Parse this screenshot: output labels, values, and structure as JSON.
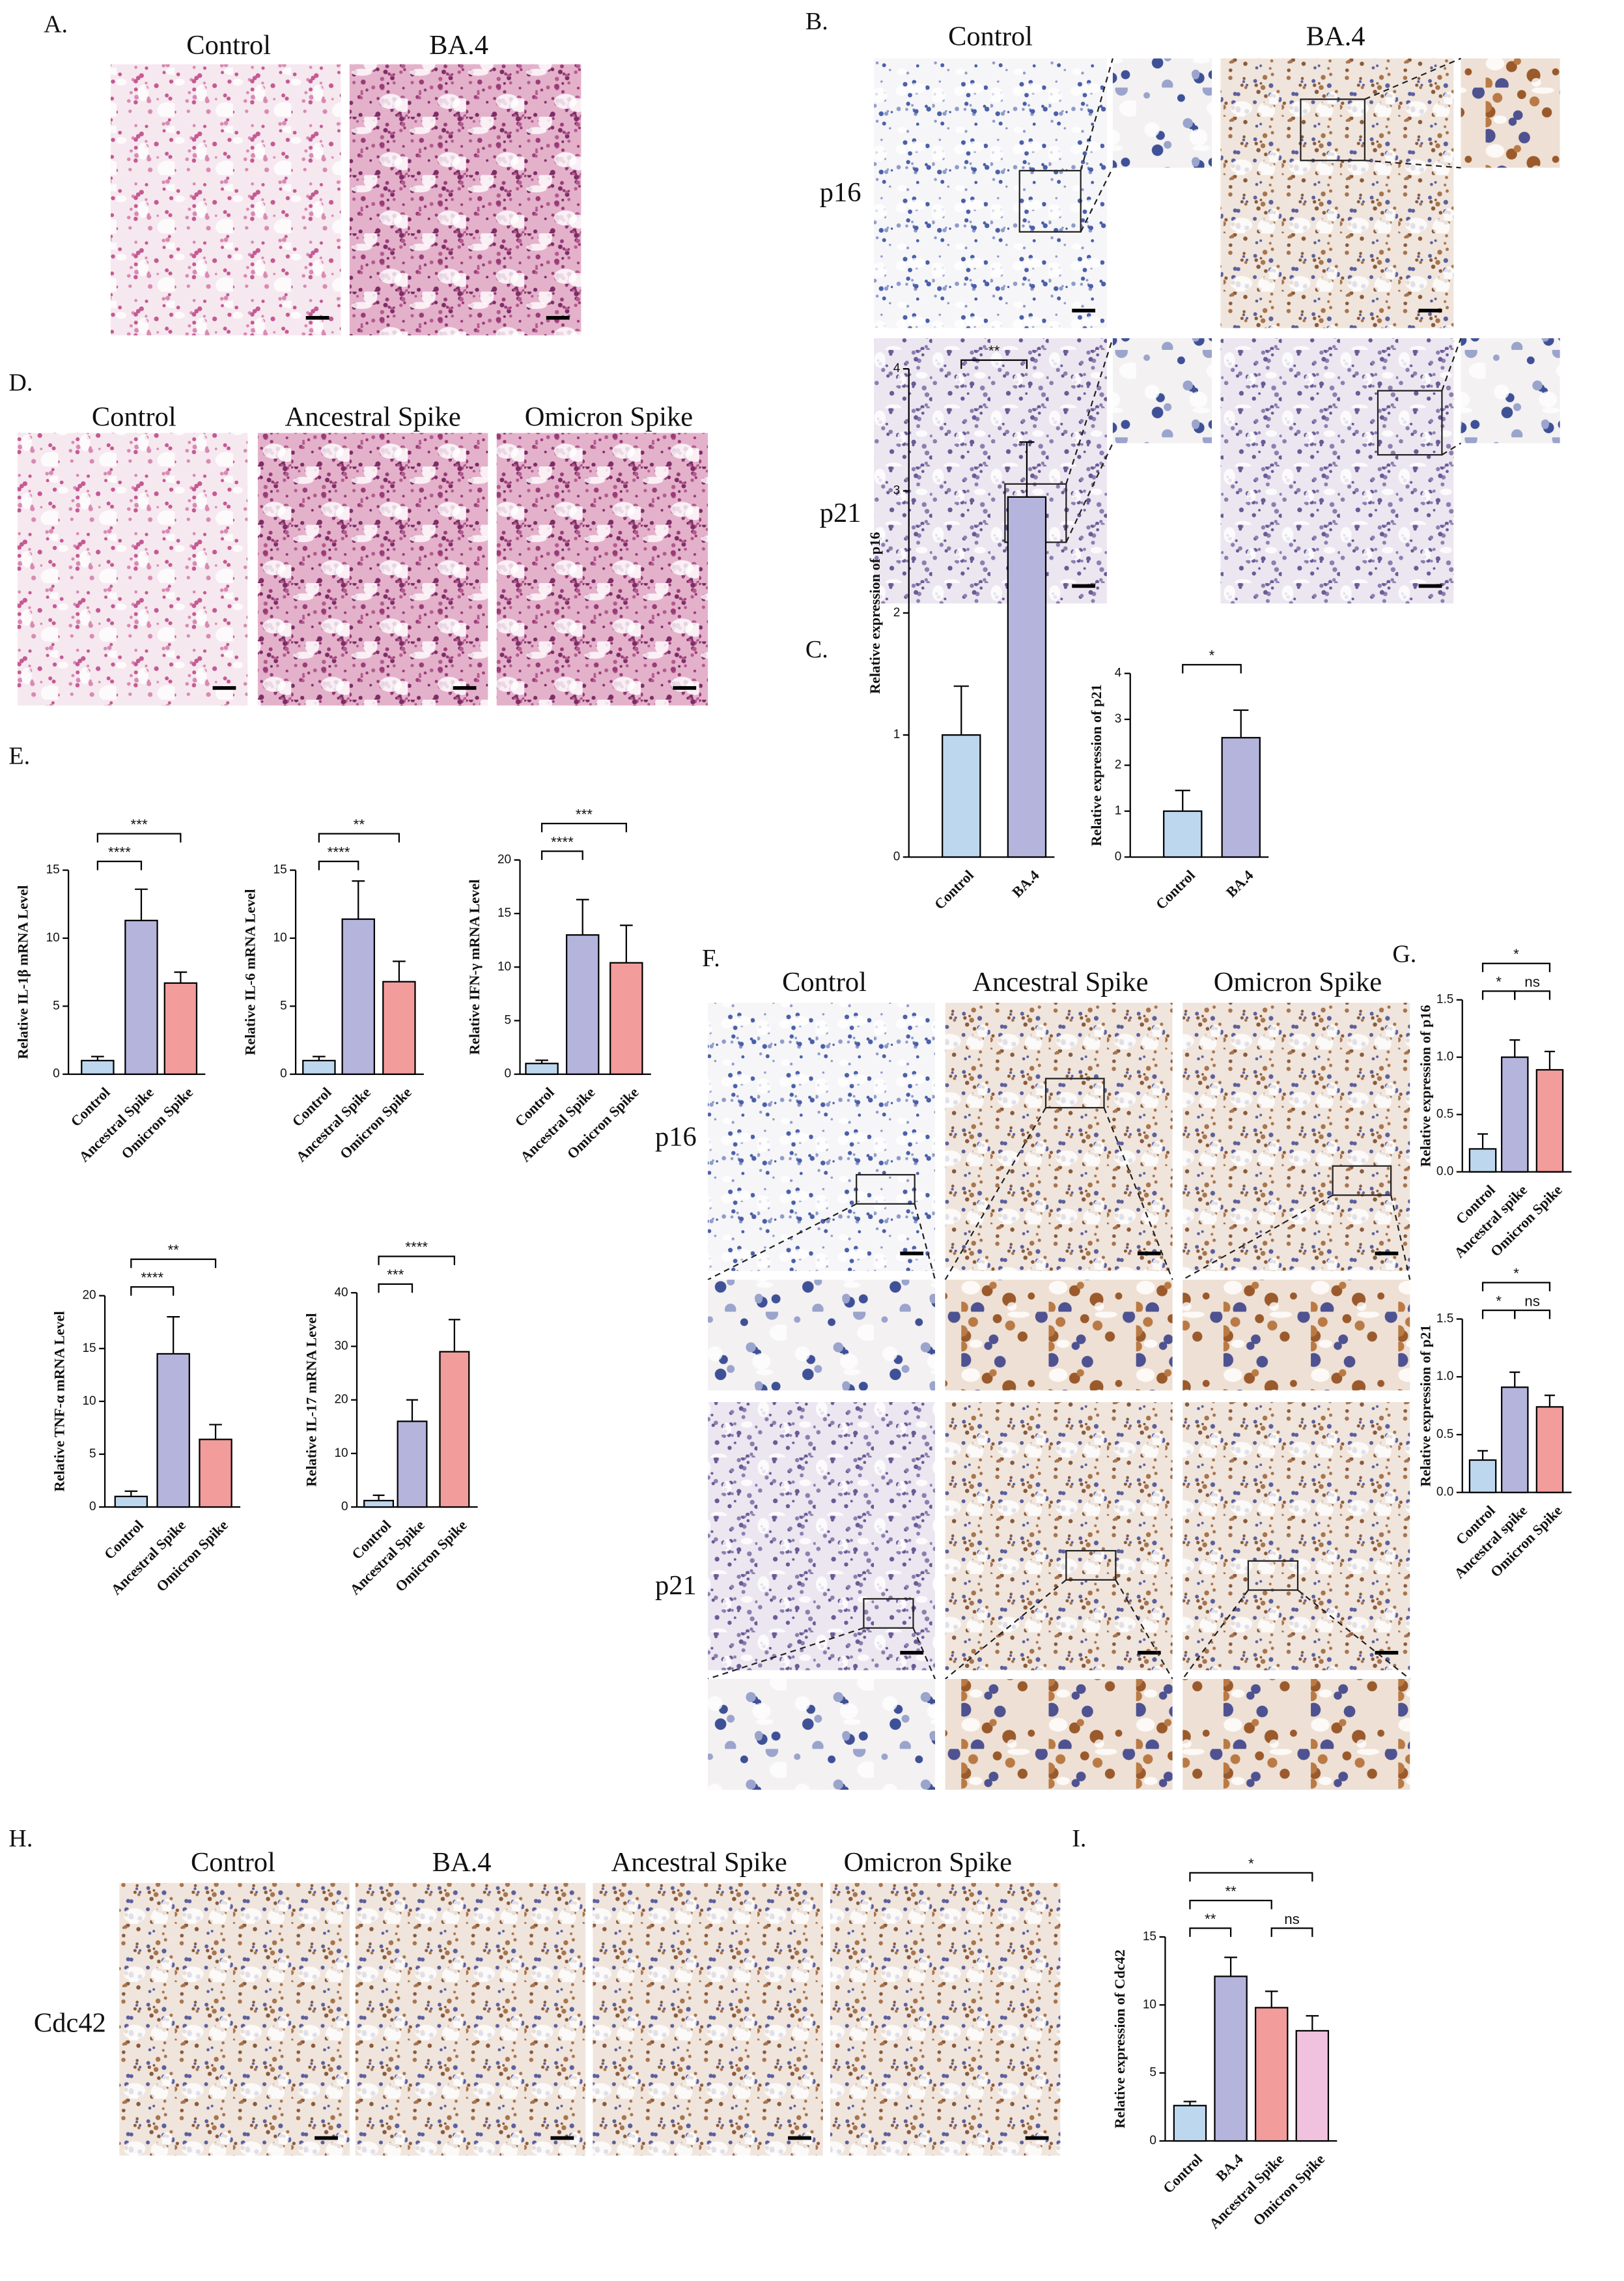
{
  "panels": {
    "A": {
      "label": "A.",
      "columns": [
        "Control",
        "BA.4"
      ]
    },
    "B": {
      "label": "B.",
      "columns": [
        "Control",
        "BA.4"
      ],
      "rows": [
        "p16",
        "p21"
      ]
    },
    "C": {
      "label": "C."
    },
    "D": {
      "label": "D.",
      "columns": [
        "Control",
        "Ancestral Spike",
        "Omicron Spike"
      ]
    },
    "E": {
      "label": "E."
    },
    "F": {
      "label": "F.",
      "columns": [
        "Control",
        "Ancestral Spike",
        "Omicron Spike"
      ],
      "rows": [
        "p16",
        "p21"
      ]
    },
    "G": {
      "label": "G."
    },
    "H": {
      "label": "H.",
      "columns": [
        "Control",
        "BA.4",
        "Ancestral Spike",
        "Omicron Spike"
      ],
      "rows": [
        "Cdc42"
      ]
    },
    "I": {
      "label": "I."
    }
  },
  "chart_data": [
    {
      "type": "bar",
      "ylabel": "Relative  expression of p16",
      "categories": [
        "Control",
        "BA.4"
      ],
      "values": [
        1.0,
        2.95
      ],
      "errors": [
        0.4,
        0.45
      ],
      "colors": [
        "#bdd7ee",
        "#b4b4dd"
      ],
      "ylim": [
        0,
        4
      ],
      "yticks": [
        0,
        1,
        2,
        3,
        4
      ],
      "significance": [
        {
          "between": [
            0,
            1
          ],
          "label": "**"
        }
      ]
    },
    {
      "type": "bar",
      "ylabel": "Relative  expression of p21",
      "categories": [
        "Control",
        "BA.4"
      ],
      "values": [
        1.0,
        2.6
      ],
      "errors": [
        0.45,
        0.6
      ],
      "colors": [
        "#bdd7ee",
        "#b4b4dd"
      ],
      "ylim": [
        0,
        4
      ],
      "yticks": [
        0,
        1,
        2,
        3,
        4
      ],
      "significance": [
        {
          "between": [
            0,
            1
          ],
          "label": "*"
        }
      ]
    },
    {
      "type": "bar",
      "ylabel": "Relative IL-1β mRNA Level",
      "categories": [
        "Control",
        "Ancestral Spike",
        "Omicron Spike"
      ],
      "values": [
        1.0,
        11.3,
        6.7
      ],
      "errors": [
        0.3,
        2.3,
        0.8
      ],
      "colors": [
        "#bdd7ee",
        "#b4b4dd",
        "#f29c9c"
      ],
      "ylim": [
        0,
        15
      ],
      "yticks": [
        0,
        5,
        10,
        15
      ],
      "significance": [
        {
          "between": [
            0,
            1
          ],
          "label": "****"
        },
        {
          "between": [
            0,
            2
          ],
          "label": "***"
        }
      ]
    },
    {
      "type": "bar",
      "ylabel": "Relative IL-6 mRNA Level",
      "categories": [
        "Control",
        "Ancestral Spike",
        "Omicron Spike"
      ],
      "values": [
        1.0,
        11.4,
        6.8
      ],
      "errors": [
        0.3,
        2.8,
        1.5
      ],
      "colors": [
        "#bdd7ee",
        "#b4b4dd",
        "#f29c9c"
      ],
      "ylim": [
        0,
        15
      ],
      "yticks": [
        0,
        5,
        10,
        15
      ],
      "significance": [
        {
          "between": [
            0,
            1
          ],
          "label": "****"
        },
        {
          "between": [
            0,
            2
          ],
          "label": "**"
        }
      ]
    },
    {
      "type": "bar",
      "ylabel": "Relative IFN-γ mRNA Level",
      "categories": [
        "Control",
        "Ancestral Spike",
        "Omicron Spike"
      ],
      "values": [
        1.0,
        13.0,
        10.4
      ],
      "errors": [
        0.3,
        3.3,
        3.5
      ],
      "colors": [
        "#bdd7ee",
        "#b4b4dd",
        "#f29c9c"
      ],
      "ylim": [
        0,
        20
      ],
      "yticks": [
        0,
        5,
        10,
        15,
        20
      ],
      "significance": [
        {
          "between": [
            0,
            1
          ],
          "label": "****"
        },
        {
          "between": [
            0,
            2
          ],
          "label": "***"
        }
      ]
    },
    {
      "type": "bar",
      "ylabel": "Relative TNF-α mRNA Level",
      "categories": [
        "Control",
        "Ancestral Spike",
        "Omicron Spike"
      ],
      "values": [
        1.0,
        14.5,
        6.4
      ],
      "errors": [
        0.5,
        3.5,
        1.4
      ],
      "colors": [
        "#bdd7ee",
        "#b4b4dd",
        "#f29c9c"
      ],
      "ylim": [
        0,
        20
      ],
      "yticks": [
        0,
        5,
        10,
        15,
        20
      ],
      "significance": [
        {
          "between": [
            0,
            1
          ],
          "label": "****"
        },
        {
          "between": [
            0,
            2
          ],
          "label": "**"
        }
      ]
    },
    {
      "type": "bar",
      "ylabel": "Relative IL-17 mRNA Level",
      "categories": [
        "Control",
        "Ancestral Spike",
        "Omicron Spike"
      ],
      "values": [
        1.2,
        16,
        29
      ],
      "errors": [
        1,
        4,
        6
      ],
      "colors": [
        "#bdd7ee",
        "#b4b4dd",
        "#f29c9c"
      ],
      "ylim": [
        0,
        40
      ],
      "yticks": [
        0,
        10,
        20,
        30,
        40
      ],
      "significance": [
        {
          "between": [
            0,
            1
          ],
          "label": "***"
        },
        {
          "between": [
            0,
            2
          ],
          "label": "****"
        }
      ]
    },
    {
      "type": "bar",
      "ylabel": "Relative  expression of p16",
      "categories": [
        "Control",
        "Ancestral spike",
        "Omicron Spike"
      ],
      "values": [
        0.2,
        1.0,
        0.89
      ],
      "errors": [
        0.13,
        0.15,
        0.16
      ],
      "colors": [
        "#bdd7ee",
        "#b4b4dd",
        "#f29c9c"
      ],
      "ylim": [
        0,
        1.5
      ],
      "yticks": [
        {
          "value": 0,
          "label": "0.0"
        },
        0.5,
        {
          "value": 1,
          "label": "1.0"
        },
        1.5
      ],
      "significance": [
        {
          "between": [
            0,
            1
          ],
          "label": "*"
        },
        {
          "between": [
            1,
            2
          ],
          "label": "ns"
        },
        {
          "between": [
            0,
            2
          ],
          "label": "*"
        }
      ]
    },
    {
      "type": "bar",
      "ylabel": "Relative  expression of p21",
      "categories": [
        "Control",
        "Ancestral spike",
        "Omicron Spike"
      ],
      "values": [
        0.28,
        0.91,
        0.74
      ],
      "errors": [
        0.08,
        0.13,
        0.1
      ],
      "colors": [
        "#bdd7ee",
        "#b4b4dd",
        "#f29c9c"
      ],
      "ylim": [
        0,
        1.5
      ],
      "yticks": [
        {
          "value": 0,
          "label": "0.0"
        },
        0.5,
        {
          "value": 1,
          "label": "1.0"
        },
        1.5
      ],
      "significance": [
        {
          "between": [
            0,
            1
          ],
          "label": "*"
        },
        {
          "between": [
            1,
            2
          ],
          "label": "ns"
        },
        {
          "between": [
            0,
            2
          ],
          "label": "*"
        }
      ]
    },
    {
      "type": "bar",
      "ylabel": "Relative  expression of Cdc42",
      "categories": [
        "Control",
        "BA.4",
        "Ancestral Spike",
        "Omicron Spike"
      ],
      "values": [
        2.6,
        12.1,
        9.8,
        8.1
      ],
      "errors": [
        0.3,
        1.4,
        1.2,
        1.1
      ],
      "colors": [
        "#bdd7ee",
        "#b4b4dd",
        "#f29c9c",
        "#f0c2df"
      ],
      "ylim": [
        0,
        15
      ],
      "yticks": [
        0,
        5,
        10,
        15
      ],
      "significance": [
        {
          "between": [
            0,
            1
          ],
          "label": "**"
        },
        {
          "between": [
            2,
            3
          ],
          "label": "ns"
        },
        {
          "between": [
            0,
            2
          ],
          "label": "**"
        },
        {
          "between": [
            0,
            3
          ],
          "label": "*"
        }
      ]
    }
  ]
}
